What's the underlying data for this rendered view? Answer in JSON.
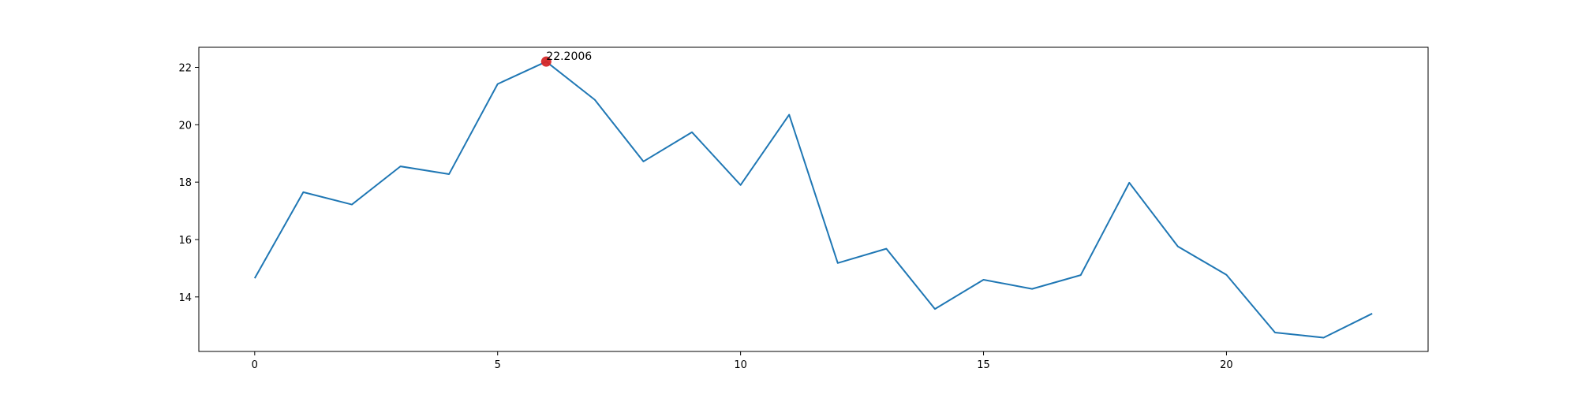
{
  "chart_data": {
    "type": "line",
    "x": [
      0,
      1,
      2,
      3,
      4,
      5,
      6,
      7,
      8,
      9,
      10,
      11,
      12,
      13,
      14,
      15,
      16,
      17,
      18,
      19,
      20,
      21,
      22,
      23
    ],
    "series": [
      {
        "values": [
          14.65,
          17.65,
          17.22,
          18.55,
          18.28,
          21.42,
          22.2006,
          20.87,
          18.72,
          19.74,
          17.9,
          20.35,
          15.18,
          15.68,
          13.58,
          14.6,
          14.28,
          14.76,
          17.98,
          15.76,
          14.77,
          12.76,
          12.58,
          13.42
        ],
        "color": "#1f77b4"
      }
    ],
    "highlight": {
      "x": 6,
      "y": 22.2006,
      "label": "22.2006",
      "color": "#d62728"
    },
    "xticks": [
      0,
      5,
      10,
      15,
      20
    ],
    "xtick_labels": [
      "0",
      "5",
      "10",
      "15",
      "20"
    ],
    "yticks": [
      14,
      16,
      18,
      20,
      22
    ],
    "ytick_labels": [
      "14",
      "16",
      "18",
      "20",
      "22"
    ],
    "xlim": [
      -1.15,
      24.15
    ],
    "ylim": [
      12.1,
      22.7
    ],
    "title": "",
    "xlabel": "",
    "ylabel": "",
    "grid": false
  }
}
